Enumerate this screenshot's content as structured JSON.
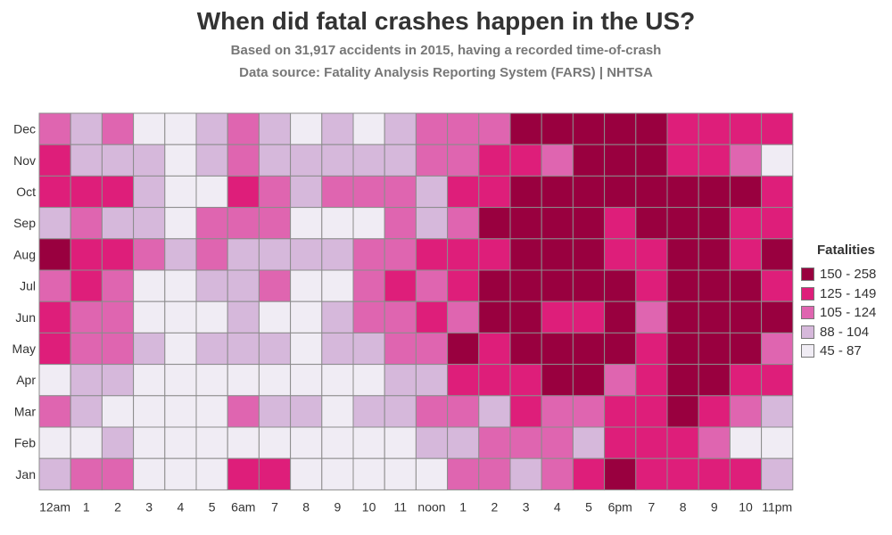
{
  "title": "When did fatal crashes happen in the US?",
  "subtitle1": "Based on 31,917 accidents in 2015, having a recorded time-of-crash",
  "subtitle2": "Data source: Fatality Analysis Reporting System (FARS) | NHTSA",
  "legend": {
    "title": "Fatalities",
    "bins": [
      {
        "label": "150 - 258",
        "color": "#99003f",
        "min": 150,
        "max": 258
      },
      {
        "label": "125 - 149",
        "color": "#de1e7a",
        "min": 125,
        "max": 149
      },
      {
        "label": "105 - 124",
        "color": "#df65b0",
        "min": 105,
        "max": 124
      },
      {
        "label": "88 - 104",
        "color": "#d6b8db",
        "min": 88,
        "max": 104
      },
      {
        "label": "45 - 87",
        "color": "#f0ecf4",
        "min": 45,
        "max": 87
      }
    ]
  },
  "chart_data": {
    "type": "heatmap",
    "x_labels": [
      "12am",
      "1",
      "2",
      "3",
      "4",
      "5",
      "6am",
      "7",
      "8",
      "9",
      "10",
      "11",
      "noon",
      "1",
      "2",
      "3",
      "4",
      "5",
      "6pm",
      "7",
      "8",
      "9",
      "10",
      "11pm"
    ],
    "y_labels": [
      "Dec",
      "Nov",
      "Oct",
      "Sep",
      "Aug",
      "Jul",
      "Jun",
      "May",
      "Apr",
      "Mar",
      "Feb",
      "Jan"
    ],
    "value_encoding": "color bin index: 0 = 45-87, 1 = 88-104, 2 = 105-124, 3 = 125-149, 4 = 150-258",
    "bins": [
      [
        2,
        1,
        2,
        0,
        0,
        1,
        2,
        1,
        0,
        1,
        0,
        1,
        2,
        2,
        2,
        4,
        4,
        4,
        4,
        4,
        3,
        3,
        3,
        3
      ],
      [
        3,
        1,
        1,
        1,
        0,
        1,
        2,
        1,
        1,
        1,
        1,
        1,
        2,
        2,
        3,
        3,
        2,
        4,
        4,
        4,
        3,
        3,
        2,
        0
      ],
      [
        3,
        3,
        3,
        1,
        0,
        0,
        3,
        2,
        1,
        2,
        2,
        2,
        1,
        3,
        3,
        4,
        4,
        4,
        4,
        4,
        4,
        4,
        4,
        3
      ],
      [
        1,
        2,
        1,
        1,
        0,
        2,
        2,
        2,
        0,
        0,
        0,
        2,
        1,
        2,
        4,
        4,
        4,
        4,
        3,
        4,
        4,
        4,
        3,
        3
      ],
      [
        4,
        3,
        3,
        2,
        1,
        2,
        1,
        1,
        1,
        1,
        2,
        2,
        3,
        3,
        3,
        4,
        4,
        4,
        3,
        3,
        4,
        4,
        3,
        4
      ],
      [
        2,
        3,
        2,
        0,
        0,
        1,
        1,
        2,
        0,
        0,
        2,
        3,
        2,
        3,
        4,
        4,
        4,
        4,
        4,
        3,
        4,
        4,
        4,
        3
      ],
      [
        3,
        2,
        2,
        0,
        0,
        0,
        1,
        0,
        0,
        1,
        2,
        2,
        3,
        2,
        4,
        4,
        3,
        3,
        4,
        2,
        4,
        4,
        4,
        4
      ],
      [
        3,
        2,
        2,
        1,
        0,
        1,
        1,
        1,
        0,
        1,
        1,
        2,
        2,
        4,
        3,
        4,
        4,
        4,
        4,
        3,
        4,
        4,
        4,
        2
      ],
      [
        0,
        1,
        1,
        0,
        0,
        0,
        0,
        0,
        0,
        0,
        0,
        1,
        1,
        3,
        3,
        3,
        4,
        4,
        2,
        3,
        4,
        4,
        3,
        3
      ],
      [
        2,
        1,
        0,
        0,
        0,
        0,
        2,
        1,
        1,
        0,
        1,
        1,
        2,
        2,
        1,
        3,
        2,
        2,
        3,
        3,
        4,
        3,
        2,
        1
      ],
      [
        0,
        0,
        1,
        0,
        0,
        0,
        0,
        0,
        0,
        0,
        0,
        0,
        1,
        1,
        2,
        2,
        2,
        1,
        3,
        3,
        3,
        2,
        0,
        0
      ],
      [
        1,
        2,
        2,
        0,
        0,
        0,
        3,
        3,
        0,
        0,
        0,
        0,
        0,
        2,
        2,
        1,
        2,
        3,
        4,
        3,
        3,
        3,
        3,
        1
      ]
    ]
  }
}
